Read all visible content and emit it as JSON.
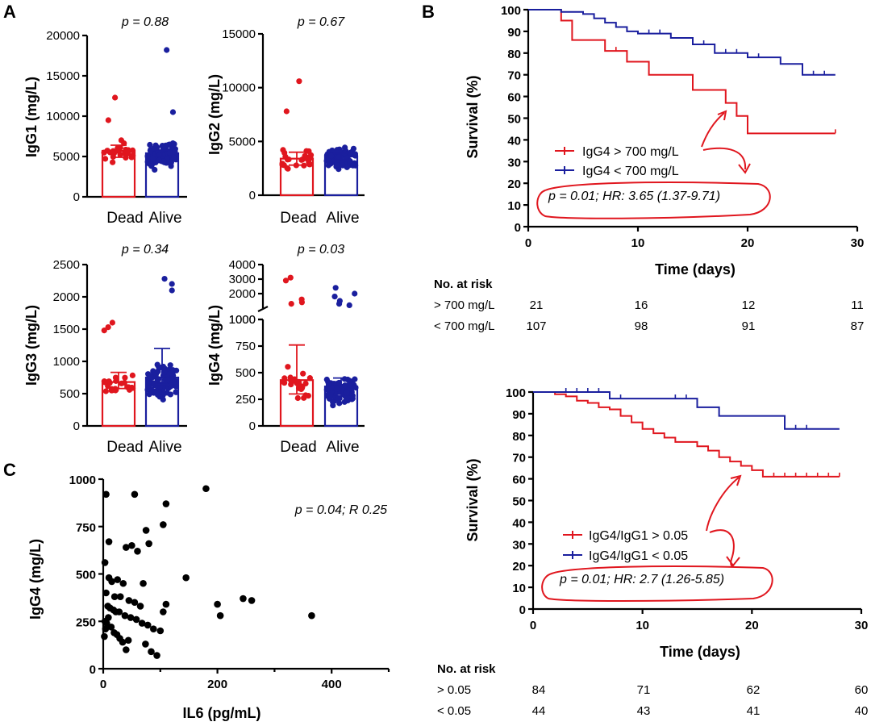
{
  "panel_labels": {
    "a": "A",
    "b": "B",
    "c": "C"
  },
  "colors": {
    "dead": "#e0161e",
    "alive": "#1a1f9e",
    "scatter": "#000000",
    "annotation": "#e0161e"
  },
  "chart_data": [
    {
      "id": "igg1",
      "type": "bar",
      "categories": [
        "Dead",
        "Alive"
      ],
      "values": [
        5700,
        5400
      ],
      "ylabel": "IgG1 (mg/L)",
      "ylim": [
        0,
        20000
      ],
      "yticks": [
        "0",
        "5000",
        "10000",
        "15000",
        "20000"
      ],
      "annotation": "p = 0.88"
    },
    {
      "id": "igg2",
      "type": "bar",
      "categories": [
        "Dead",
        "Alive"
      ],
      "values": [
        3400,
        3600
      ],
      "ylabel": "IgG2 (mg/L)",
      "ylim": [
        0,
        15000
      ],
      "yticks": [
        "0",
        "5000",
        "10000",
        "15000"
      ],
      "annotation": "p = 0.67"
    },
    {
      "id": "igg3",
      "type": "bar",
      "categories": [
        "Dead",
        "Alive"
      ],
      "values": [
        680,
        750
      ],
      "ylabel": "IgG3 (mg/L)",
      "ylim": [
        0,
        2500
      ],
      "yticks": [
        "0",
        "500",
        "1000",
        "1500",
        "2000",
        "2500"
      ],
      "annotation": "p = 0.34"
    },
    {
      "id": "igg4",
      "type": "bar",
      "categories": [
        "Dead",
        "Alive"
      ],
      "values": [
        430,
        370
      ],
      "ylabel": "IgG4 (mg/L)",
      "ylim": [
        0,
        4000
      ],
      "axis_break": [
        1000,
        1000
      ],
      "yticks_lower": [
        "0",
        "250",
        "500",
        "750",
        "1000"
      ],
      "yticks_upper": [
        "1000",
        "2000",
        "3000",
        "4000"
      ],
      "annotation": "p = 0.03"
    },
    {
      "id": "km1",
      "type": "line",
      "xlabel": "Time (days)",
      "ylabel": "Survival (%)",
      "xlim": [
        0,
        30
      ],
      "ylim": [
        0,
        100
      ],
      "xticks": [
        "0",
        "10",
        "20",
        "30"
      ],
      "yticks": [
        "0",
        "10",
        "20",
        "30",
        "40",
        "50",
        "60",
        "70",
        "80",
        "90",
        "100"
      ],
      "series": [
        {
          "name": "IgG4 > 700 mg/L",
          "x": [
            0,
            3,
            4,
            7,
            9,
            11,
            15,
            18,
            19,
            20,
            28
          ],
          "y": [
            100,
            95,
            86,
            81,
            76,
            70,
            63,
            57,
            51,
            43,
            43
          ]
        },
        {
          "name": "IgG4 < 700 mg/L",
          "x": [
            0,
            3,
            5,
            6,
            7,
            8,
            9,
            10,
            13,
            15,
            17,
            20,
            23,
            25,
            28
          ],
          "y": [
            100,
            99,
            98,
            96,
            94,
            92,
            90,
            89,
            87,
            84,
            80,
            78,
            75,
            70,
            70
          ]
        }
      ],
      "annotation": "p = 0.01; HR: 3.65 (1.37-9.71)",
      "risk_header": "No. at risk",
      "risk_rows": [
        {
          "label": "> 700 mg/L",
          "values": [
            "21",
            "16",
            "12",
            "11"
          ]
        },
        {
          "label": "< 700 mg/L",
          "values": [
            "107",
            "98",
            "91",
            "87"
          ]
        }
      ]
    },
    {
      "id": "km2",
      "type": "line",
      "xlabel": "Time (days)",
      "ylabel": "Survival (%)",
      "xlim": [
        0,
        30
      ],
      "ylim": [
        0,
        100
      ],
      "xticks": [
        "0",
        "10",
        "20",
        "30"
      ],
      "yticks": [
        "0",
        "10",
        "20",
        "30",
        "40",
        "50",
        "60",
        "70",
        "80",
        "90",
        "100"
      ],
      "series": [
        {
          "name": "IgG4/IgG1 > 0.05",
          "x": [
            0,
            2,
            3,
            4,
            5,
            6,
            7,
            8,
            9,
            10,
            11,
            12,
            13,
            15,
            16,
            17,
            18,
            19,
            20,
            21,
            28
          ],
          "y": [
            100,
            99,
            98,
            96,
            95,
            93,
            92,
            89,
            86,
            83,
            81,
            79,
            77,
            75,
            73,
            70,
            68,
            66,
            64,
            61,
            61
          ]
        },
        {
          "name": "IgG4/IgG1 < 0.05",
          "x": [
            0,
            7,
            15,
            17,
            22,
            23,
            28
          ],
          "y": [
            100,
            97,
            93,
            89,
            89,
            83,
            83
          ]
        }
      ],
      "annotation": "p = 0.01; HR: 2.7 (1.26-5.85)",
      "risk_header": "No. at risk",
      "risk_rows": [
        {
          "label": "> 0.05",
          "values": [
            "84",
            "71",
            "62",
            "60"
          ]
        },
        {
          "label": "< 0.05",
          "values": [
            "44",
            "43",
            "41",
            "40"
          ]
        }
      ]
    },
    {
      "id": "scatter",
      "type": "scatter",
      "xlabel": "IL6 (pg/mL)",
      "ylabel": "IgG4 (mg/L)",
      "xlim": [
        0,
        500
      ],
      "ylim": [
        0,
        1000
      ],
      "xticks": [
        "0",
        "200",
        "400"
      ],
      "yticks": [
        "0",
        "250",
        "500",
        "750",
        "1000"
      ],
      "annotation": "p = 0.04; R 0.25",
      "x": [
        5,
        55,
        180,
        110,
        105,
        75,
        10,
        50,
        80,
        40,
        60,
        145,
        70,
        3,
        10,
        15,
        25,
        35,
        5,
        20,
        30,
        45,
        55,
        65,
        8,
        12,
        18,
        22,
        28,
        38,
        48,
        58,
        68,
        78,
        88,
        100,
        105,
        110,
        200,
        205,
        245,
        260,
        365,
        3,
        6,
        9,
        14,
        19,
        24,
        29,
        34,
        44,
        74,
        84,
        94,
        2,
        4,
        40
      ],
      "y": [
        920,
        920,
        950,
        870,
        760,
        730,
        670,
        650,
        660,
        640,
        620,
        480,
        450,
        560,
        480,
        460,
        470,
        450,
        400,
        380,
        380,
        360,
        350,
        330,
        330,
        320,
        310,
        300,
        300,
        280,
        270,
        260,
        240,
        230,
        210,
        200,
        300,
        340,
        340,
        280,
        370,
        360,
        280,
        250,
        240,
        270,
        220,
        190,
        180,
        160,
        140,
        150,
        130,
        90,
        70,
        170,
        210,
        100
      ]
    }
  ]
}
